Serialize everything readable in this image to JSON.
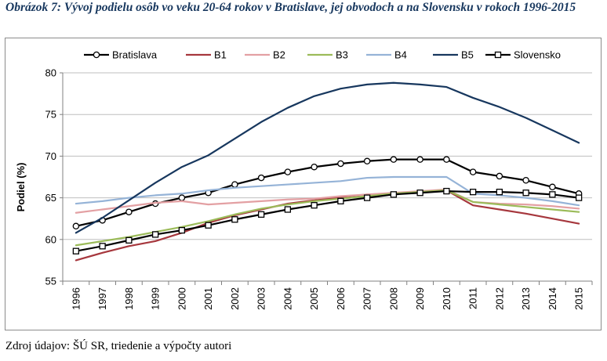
{
  "caption": "Obrázok 7: Vývoj podielu osôb vo veku 20-64 rokov v Bratislave, jej obvodoch a na Slovensku v rokoch 1996-2015",
  "source_note": "Zdroj údajov: ŠÚ SR, triedenie a výpočty autori",
  "chart_data": {
    "type": "line",
    "title": "",
    "xlabel": "",
    "ylabel": "Podiel (%)",
    "ylim": [
      55,
      80
    ],
    "yticks": [
      55,
      60,
      65,
      70,
      75,
      80
    ],
    "grid": "horizontal",
    "legend_position": "top",
    "x": [
      "1996",
      "1997",
      "1998",
      "1999",
      "2000",
      "2001",
      "2002",
      "2003",
      "2004",
      "2005",
      "2006",
      "2007",
      "2008",
      "2009",
      "2010",
      "2011",
      "2012",
      "2013",
      "2014",
      "2015"
    ],
    "series": [
      {
        "name": "Bratislava",
        "color": "#000000",
        "marker": "circle",
        "values": [
          61.6,
          62.3,
          63.3,
          64.3,
          65.0,
          65.6,
          66.6,
          67.4,
          68.1,
          68.7,
          69.1,
          69.4,
          69.6,
          69.6,
          69.6,
          68.1,
          67.6,
          67.1,
          66.3,
          65.5
        ]
      },
      {
        "name": "B1",
        "color": "#a6373d",
        "marker": "none",
        "values": [
          57.5,
          58.4,
          59.2,
          59.8,
          60.8,
          62.0,
          62.9,
          63.6,
          64.3,
          64.7,
          65.1,
          65.4,
          65.5,
          65.7,
          65.9,
          64.1,
          63.6,
          63.1,
          62.5,
          61.9
        ]
      },
      {
        "name": "B2",
        "color": "#e3a0a3",
        "marker": "none",
        "values": [
          63.2,
          63.6,
          64.0,
          64.4,
          64.6,
          64.2,
          64.4,
          64.6,
          64.8,
          64.9,
          65.2,
          65.4,
          65.6,
          65.8,
          66.0,
          64.5,
          64.3,
          64.2,
          64.0,
          63.7
        ]
      },
      {
        "name": "B3",
        "color": "#9bbb59",
        "marker": "none",
        "values": [
          59.3,
          59.8,
          60.3,
          60.9,
          61.5,
          62.2,
          63.0,
          63.7,
          64.2,
          64.6,
          64.9,
          65.2,
          65.5,
          65.7,
          65.9,
          64.5,
          64.2,
          63.9,
          63.6,
          63.3
        ]
      },
      {
        "name": "B4",
        "color": "#95b3d7",
        "marker": "none",
        "values": [
          64.3,
          64.6,
          65.0,
          65.3,
          65.5,
          65.9,
          66.2,
          66.4,
          66.6,
          66.8,
          67.0,
          67.4,
          67.5,
          67.5,
          67.5,
          65.5,
          65.3,
          65.0,
          64.6,
          64.1
        ]
      },
      {
        "name": "B5",
        "color": "#17375e",
        "marker": "none",
        "values": [
          60.8,
          62.6,
          64.7,
          66.8,
          68.7,
          70.1,
          72.1,
          74.1,
          75.8,
          77.2,
          78.1,
          78.6,
          78.8,
          78.6,
          78.3,
          77.0,
          75.9,
          74.6,
          73.1,
          71.6
        ]
      },
      {
        "name": "Slovensko",
        "color": "#000000",
        "marker": "square",
        "values": [
          58.6,
          59.2,
          59.9,
          60.6,
          61.1,
          61.7,
          62.4,
          63.0,
          63.6,
          64.1,
          64.6,
          65.0,
          65.4,
          65.6,
          65.8,
          65.7,
          65.7,
          65.6,
          65.4,
          65.0
        ]
      }
    ]
  }
}
